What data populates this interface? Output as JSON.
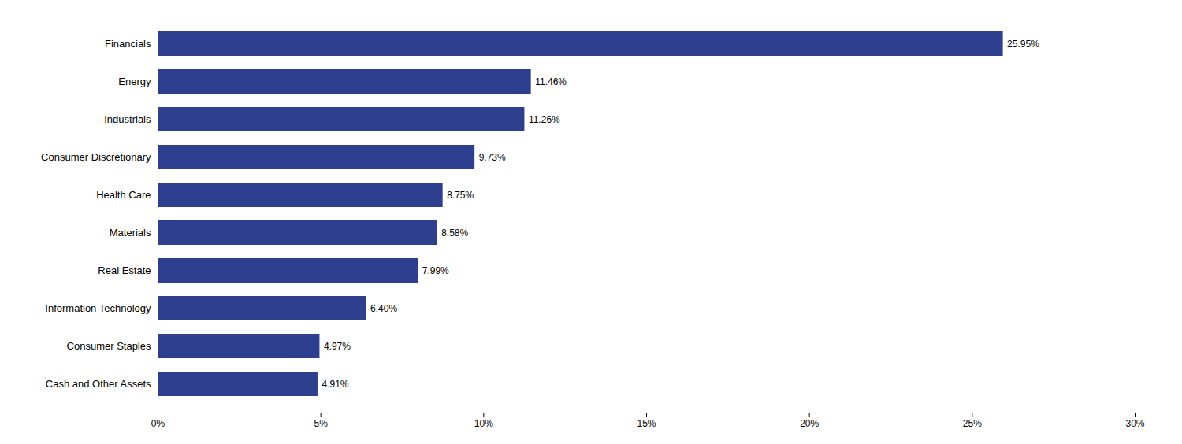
{
  "chart_data": {
    "type": "bar",
    "orientation": "horizontal",
    "categories": [
      "Cash and Other Assets",
      "Consumer Staples",
      "Information Technology",
      "Real Estate",
      "Materials",
      "Health Care",
      "Consumer Discretionary",
      "Industrials",
      "Energy",
      "Financials"
    ],
    "values": [
      4.91,
      4.97,
      6.4,
      7.99,
      8.58,
      8.75,
      9.73,
      11.26,
      11.46,
      25.95
    ],
    "value_labels": [
      "4.91%",
      "4.97%",
      "6.40%",
      "7.99%",
      "8.58%",
      "8.75%",
      "9.73%",
      "11.26%",
      "11.46%",
      "25.95%"
    ],
    "color": "#2e3f8f",
    "xlim": [
      0,
      30
    ],
    "xticks": [
      {
        "value": 0,
        "label": "0%"
      },
      {
        "value": 5,
        "label": "5%"
      },
      {
        "value": 10,
        "label": "10%"
      },
      {
        "value": 15,
        "label": "15%"
      },
      {
        "value": 20,
        "label": "20%"
      },
      {
        "value": 25,
        "label": "25%"
      },
      {
        "value": 30,
        "label": "30%"
      }
    ],
    "grid": false,
    "data_labels": true
  }
}
